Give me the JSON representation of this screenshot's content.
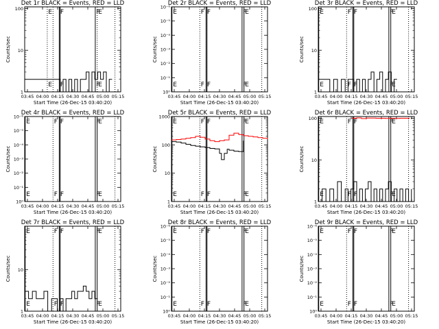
{
  "figure": {
    "title_format": "Det {det} BLACK = Events, RED = LLD",
    "xlabel": "Start Time (26-Dec-15 03:40:20)",
    "ylabel": "Counts/sec",
    "event_color": "#000000",
    "lld_color": "#ff0000"
  },
  "chart_data": [
    {
      "type": "line",
      "det": "1r",
      "title": "Det 1r BLACK = Events, RED = LLD",
      "xlabel": "Start Time (26-Dec-15 03:40:20)",
      "ylabel": "Counts/sec",
      "x_ticks": [
        "03:45",
        "04:00",
        "04:15",
        "04:30",
        "04:45",
        "05:00",
        "05:15"
      ],
      "y_ticks": [
        "1",
        "10",
        "100"
      ],
      "ylim": [
        1,
        110
      ],
      "x_range_min": [
        0,
        100
      ],
      "markers": [
        {
          "t": 23.5,
          "style": "dotted",
          "label": "E"
        },
        {
          "t": 29.5,
          "style": "dotted",
          "label": ""
        },
        {
          "t": 36.0,
          "style": "solid",
          "label": "F"
        },
        {
          "t": 37.0,
          "style": "solid",
          "label": ""
        },
        {
          "t": 73.5,
          "style": "solid",
          "label": "F"
        },
        {
          "t": 75.5,
          "style": "dotted",
          "label": "E"
        },
        {
          "t": 94.0,
          "style": "dotted",
          "label": ""
        }
      ],
      "series": [
        {
          "name": "Events",
          "color": "#000000",
          "x": [
            0,
            4,
            8,
            12,
            16,
            20,
            24,
            28,
            31,
            34,
            37,
            40,
            43,
            46,
            49,
            52,
            55,
            58,
            61,
            64,
            67,
            70,
            73,
            76,
            79,
            82,
            85,
            88,
            91
          ],
          "y": [
            2,
            2,
            2,
            2,
            2,
            2,
            2,
            2,
            2,
            2,
            1,
            2,
            1,
            2,
            1,
            2,
            1,
            2,
            2,
            3,
            1,
            3,
            2,
            3,
            2,
            3,
            1,
            2,
            2
          ]
        }
      ]
    },
    {
      "type": "line",
      "det": "2r",
      "title": "Det 2r BLACK = Events, RED = LLD",
      "xlabel": "Start Time (26-Dec-15 03:40:20)",
      "ylabel": "Counts/sec",
      "x_ticks": [
        "03:45",
        "04:00",
        "04:15",
        "04:30",
        "04:45",
        "05:00",
        "05:15"
      ],
      "y_ticks": [
        "10⁰",
        "10⁻¹",
        "10⁻²",
        "10⁻³",
        "10⁻⁴",
        "10⁻⁵",
        "10⁻⁶"
      ],
      "ylim": [
        1e-06,
        1
      ],
      "markers": [
        {
          "t": 0.5,
          "style": "solid",
          "label": "E"
        },
        {
          "t": 29.5,
          "style": "dotted",
          "label": "F"
        },
        {
          "t": 36.0,
          "style": "solid",
          "label": "F"
        },
        {
          "t": 37.0,
          "style": "solid",
          "label": ""
        },
        {
          "t": 73.5,
          "style": "solid",
          "label": "F"
        },
        {
          "t": 75.5,
          "style": "solid",
          "label": "E"
        },
        {
          "t": 94.0,
          "style": "dotted",
          "label": ""
        }
      ],
      "series": []
    },
    {
      "type": "line",
      "det": "3r",
      "title": "Det 3r BLACK = Events, RED = LLD",
      "xlabel": "Start Time (26-Dec-15 03:40:20)",
      "ylabel": "Counts/sec",
      "x_ticks": [
        "03:45",
        "04:00",
        "04:15",
        "04:30",
        "04:45",
        "05:00",
        "05:15"
      ],
      "y_ticks": [
        "1",
        "10",
        "100"
      ],
      "ylim": [
        1,
        110
      ],
      "markers": [
        {
          "t": 0.5,
          "style": "solid",
          "label": "E"
        },
        {
          "t": 29.5,
          "style": "dotted",
          "label": "F"
        },
        {
          "t": 36.0,
          "style": "solid",
          "label": "F"
        },
        {
          "t": 37.0,
          "style": "solid",
          "label": ""
        },
        {
          "t": 73.5,
          "style": "solid",
          "label": "F"
        },
        {
          "t": 75.5,
          "style": "solid",
          "label": "E"
        },
        {
          "t": 94.0,
          "style": "dotted",
          "label": ""
        }
      ],
      "series": [
        {
          "name": "Events",
          "color": "#000000",
          "x": [
            0,
            4,
            8,
            12,
            16,
            20,
            24,
            28,
            31,
            34,
            37,
            40,
            43,
            46,
            49,
            52,
            55,
            58,
            61,
            64,
            67,
            70,
            73,
            76,
            79,
            82
          ],
          "y": [
            2,
            2,
            2,
            1,
            2,
            1,
            2,
            1,
            2,
            2,
            1,
            2,
            1,
            2,
            1,
            2,
            3,
            1,
            2,
            3,
            1,
            2,
            3,
            1,
            2,
            2
          ]
        }
      ]
    },
    {
      "type": "line",
      "det": "4r",
      "title": "Det 4r BLACK = Events, RED = LLD",
      "xlabel": "Start Time (26-Dec-15 03:40:20)",
      "ylabel": "Counts/sec",
      "x_ticks": [
        "03:45",
        "04:00",
        "04:15",
        "04:30",
        "04:45",
        "05:00",
        "05:15"
      ],
      "y_ticks": [
        "10⁰",
        "10⁻¹",
        "10⁻²",
        "10⁻³",
        "10⁻⁴",
        "10⁻⁵",
        "10⁻⁶"
      ],
      "ylim": [
        1e-06,
        1
      ],
      "markers": [
        {
          "t": 0.5,
          "style": "solid",
          "label": "E"
        },
        {
          "t": 29.5,
          "style": "dotted",
          "label": "F"
        },
        {
          "t": 36.0,
          "style": "solid",
          "label": "F"
        },
        {
          "t": 37.0,
          "style": "solid",
          "label": ""
        },
        {
          "t": 73.5,
          "style": "solid",
          "label": "F"
        },
        {
          "t": 75.5,
          "style": "solid",
          "label": "E"
        },
        {
          "t": 94.0,
          "style": "dotted",
          "label": ""
        }
      ],
      "series": []
    },
    {
      "type": "line",
      "det": "5r",
      "title": "Det 5r BLACK = Events, RED = LLD",
      "xlabel": "Start Time (26-Dec-15 03:40:20)",
      "ylabel": "Counts/sec",
      "x_ticks": [
        "03:45",
        "04:00",
        "04:15",
        "04:30",
        "04:45",
        "05:00",
        "05:15"
      ],
      "y_ticks": [
        "1",
        "10",
        "100",
        "1000"
      ],
      "ylim": [
        1,
        1000
      ],
      "markers": [
        {
          "t": 0.5,
          "style": "solid",
          "label": "E"
        },
        {
          "t": 29.5,
          "style": "dotted",
          "label": "F"
        },
        {
          "t": 36.0,
          "style": "solid",
          "label": "F"
        },
        {
          "t": 37.0,
          "style": "solid",
          "label": ""
        },
        {
          "t": 73.5,
          "style": "solid",
          "label": "F"
        },
        {
          "t": 75.5,
          "style": "solid",
          "label": "E"
        },
        {
          "t": 94.0,
          "style": "dotted",
          "label": ""
        }
      ],
      "series": [
        {
          "name": "LLD",
          "color": "#ff0000",
          "x": [
            0,
            5,
            10,
            15,
            20,
            25,
            30,
            35,
            40,
            45,
            50,
            55,
            60,
            65,
            70,
            75,
            80,
            85,
            90,
            95,
            100
          ],
          "y": [
            150,
            155,
            160,
            170,
            180,
            200,
            185,
            160,
            140,
            130,
            140,
            150,
            220,
            260,
            230,
            210,
            200,
            190,
            180,
            170,
            160
          ]
        },
        {
          "name": "Events",
          "color": "#000000",
          "x": [
            0,
            5,
            10,
            15,
            20,
            25,
            30,
            35,
            40,
            45,
            50,
            52,
            55,
            58,
            60,
            65,
            70,
            75
          ],
          "y": [
            130,
            125,
            115,
            105,
            95,
            90,
            85,
            80,
            75,
            72,
            50,
            30,
            50,
            70,
            65,
            60,
            58,
            140
          ]
        }
      ]
    },
    {
      "type": "line",
      "det": "6r",
      "title": "Det 6r BLACK = Events, RED = LLD",
      "xlabel": "Start Time (26-Dec-15 03:40:20)",
      "ylabel": "Counts/sec",
      "x_ticks": [
        "03:45",
        "04:00",
        "04:15",
        "04:30",
        "04:45",
        "05:00",
        "05:15"
      ],
      "y_ticks": [
        "1",
        "10",
        "100"
      ],
      "ylim": [
        1,
        110
      ],
      "markers": [
        {
          "t": 0.5,
          "style": "solid",
          "label": "E"
        },
        {
          "t": 29.5,
          "style": "dotted",
          "label": "F"
        },
        {
          "t": 36.0,
          "style": "solid",
          "label": "F"
        },
        {
          "t": 37.0,
          "style": "solid",
          "label": ""
        },
        {
          "t": 73.5,
          "style": "solid",
          "label": "F"
        },
        {
          "t": 75.5,
          "style": "solid",
          "label": "E"
        },
        {
          "t": 94.0,
          "style": "dotted",
          "label": ""
        }
      ],
      "series": [
        {
          "name": "LLD",
          "color": "#ff0000",
          "x": [
            35,
            40,
            45,
            50,
            60,
            70,
            85,
            90,
            95
          ],
          "y": [
            100,
            102,
            98,
            101,
            100,
            99,
            100,
            100,
            101
          ]
        },
        {
          "name": "Events",
          "color": "#000000",
          "x": [
            0,
            4,
            8,
            12,
            16,
            20,
            24,
            28,
            31,
            34,
            37,
            40,
            43,
            46,
            49,
            52,
            55,
            58,
            61,
            64,
            67,
            70,
            73,
            76,
            79,
            82,
            85,
            88,
            91,
            94,
            97
          ],
          "y": [
            1,
            2,
            1,
            2,
            1,
            3,
            1,
            2,
            1,
            2,
            3,
            1,
            2,
            1,
            2,
            3,
            1,
            2,
            1,
            2,
            1,
            2,
            3,
            1,
            2,
            1,
            2,
            1,
            2,
            1,
            2
          ]
        }
      ]
    },
    {
      "type": "line",
      "det": "7r",
      "title": "Det 7r BLACK = Events, RED = LLD",
      "xlabel": "Start Time (26-Dec-15 03:40:20)",
      "ylabel": "Counts/sec",
      "x_ticks": [
        "03:45",
        "04:00",
        "04:15",
        "04:30",
        "04:45",
        "05:00",
        "05:15"
      ],
      "y_ticks": [
        "1",
        "10"
      ],
      "ylim": [
        1,
        110
      ],
      "markers": [
        {
          "t": 0.5,
          "style": "solid",
          "label": "E"
        },
        {
          "t": 29.5,
          "style": "dotted",
          "label": "F"
        },
        {
          "t": 36.0,
          "style": "solid",
          "label": "F"
        },
        {
          "t": 37.0,
          "style": "solid",
          "label": ""
        },
        {
          "t": 73.5,
          "style": "solid",
          "label": "F"
        },
        {
          "t": 75.5,
          "style": "solid",
          "label": "E"
        },
        {
          "t": 94.0,
          "style": "dotted",
          "label": ""
        }
      ],
      "series": [
        {
          "name": "Events",
          "color": "#000000",
          "x": [
            0,
            4,
            8,
            12,
            16,
            20,
            24,
            28,
            31,
            34,
            37,
            40,
            43,
            46,
            49,
            52,
            55,
            58,
            61,
            64,
            67,
            70,
            73,
            76
          ],
          "y": [
            3,
            2,
            3,
            2,
            2,
            3,
            1,
            2,
            2,
            1,
            2,
            1,
            2,
            2,
            3,
            2,
            3,
            3,
            4,
            3,
            2,
            3,
            2,
            2
          ]
        }
      ]
    },
    {
      "type": "line",
      "det": "8r",
      "title": "Det 8r BLACK = Events, RED = LLD",
      "xlabel": "Start Time (26-Dec-15 03:40:20)",
      "ylabel": "Counts/sec",
      "x_ticks": [
        "03:45",
        "04:00",
        "04:15",
        "04:30",
        "04:45",
        "05:00",
        "05:15"
      ],
      "y_ticks": [
        "10⁰",
        "10⁻¹",
        "10⁻²",
        "10⁻³",
        "10⁻⁴",
        "10⁻⁵",
        "10⁻⁶"
      ],
      "ylim": [
        1e-06,
        1
      ],
      "markers": [
        {
          "t": 0.5,
          "style": "solid",
          "label": "E"
        },
        {
          "t": 29.5,
          "style": "dotted",
          "label": "F"
        },
        {
          "t": 36.0,
          "style": "solid",
          "label": "F"
        },
        {
          "t": 37.0,
          "style": "solid",
          "label": ""
        },
        {
          "t": 73.5,
          "style": "solid",
          "label": "F"
        },
        {
          "t": 75.5,
          "style": "solid",
          "label": "E"
        },
        {
          "t": 94.0,
          "style": "dotted",
          "label": ""
        }
      ],
      "series": []
    },
    {
      "type": "line",
      "det": "9r",
      "title": "Det 9r BLACK = Events, RED = LLD",
      "xlabel": "Start Time (26-Dec-15 03:40:20)",
      "ylabel": "Counts/sec",
      "x_ticks": [
        "03:45",
        "04:00",
        "04:15",
        "04:30",
        "04:45",
        "05:00",
        "05:15"
      ],
      "y_ticks": [
        "10⁰",
        "10⁻¹",
        "10⁻²",
        "10⁻³",
        "10⁻⁴",
        "10⁻⁵",
        "10⁻⁶"
      ],
      "ylim": [
        1e-06,
        1
      ],
      "markers": [
        {
          "t": 0.5,
          "style": "solid",
          "label": "E"
        },
        {
          "t": 29.5,
          "style": "dotted",
          "label": "F"
        },
        {
          "t": 36.0,
          "style": "solid",
          "label": "F"
        },
        {
          "t": 37.0,
          "style": "solid",
          "label": ""
        },
        {
          "t": 73.5,
          "style": "solid",
          "label": "F"
        },
        {
          "t": 75.5,
          "style": "solid",
          "label": "E"
        },
        {
          "t": 94.0,
          "style": "dotted",
          "label": ""
        }
      ],
      "series": []
    }
  ]
}
